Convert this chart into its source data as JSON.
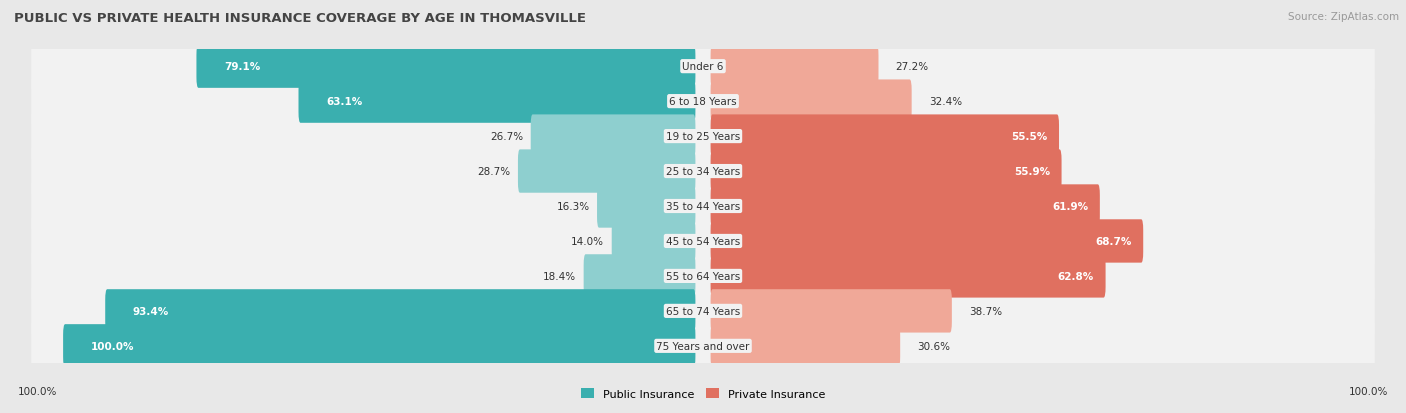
{
  "title": "PUBLIC VS PRIVATE HEALTH INSURANCE COVERAGE BY AGE IN THOMASVILLE",
  "source": "Source: ZipAtlas.com",
  "categories": [
    "Under 6",
    "6 to 18 Years",
    "19 to 25 Years",
    "25 to 34 Years",
    "35 to 44 Years",
    "45 to 54 Years",
    "55 to 64 Years",
    "65 to 74 Years",
    "75 Years and over"
  ],
  "public_values": [
    79.1,
    63.1,
    26.7,
    28.7,
    16.3,
    14.0,
    18.4,
    93.4,
    100.0
  ],
  "private_values": [
    27.2,
    32.4,
    55.5,
    55.9,
    61.9,
    68.7,
    62.8,
    38.7,
    30.6
  ],
  "public_color_large": "#3AAFAF",
  "public_color_small": "#8ECFCF",
  "private_color_large": "#E07060",
  "private_color_small": "#F0A898",
  "bg_color": "#e8e8e8",
  "row_bg_color": "#f2f2f2",
  "title_color": "#444444",
  "source_color": "#999999",
  "label_dark": "#333333",
  "label_white": "#ffffff",
  "legend_public": "Public Insurance",
  "legend_private": "Private Insurance",
  "left_axis_label": "100.0%",
  "right_axis_label": "100.0%",
  "threshold_inside": 40
}
